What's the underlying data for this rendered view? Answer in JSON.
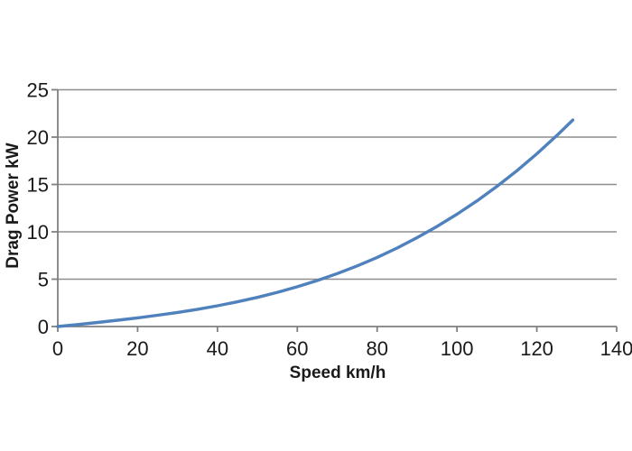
{
  "chart_data": {
    "type": "line",
    "title": "",
    "xlabel": "Speed km/h",
    "ylabel": "Drag Power kW",
    "xlim": [
      0,
      140
    ],
    "ylim": [
      0,
      25
    ],
    "xticks": [
      0,
      20,
      40,
      60,
      80,
      100,
      120,
      140
    ],
    "yticks": [
      0,
      5,
      10,
      15,
      20,
      25
    ],
    "grid": "horizontal-major",
    "legend": "none",
    "series": [
      {
        "x": [
          0,
          5,
          10,
          15,
          20,
          25,
          30,
          35,
          40,
          45,
          50,
          55,
          60,
          65,
          70,
          75,
          80,
          85,
          90,
          95,
          100,
          105,
          110,
          115,
          120,
          125,
          129
        ],
        "y": [
          0,
          0.21,
          0.43,
          0.67,
          0.91,
          1.19,
          1.49,
          1.82,
          2.19,
          2.61,
          3.08,
          3.61,
          4.2,
          4.86,
          5.59,
          6.4,
          7.3,
          8.29,
          9.38,
          10.56,
          11.86,
          13.27,
          14.8,
          16.45,
          18.24,
          20.16,
          21.8
        ]
      }
    ],
    "colors": {
      "line": "#4F81BD",
      "gridline": "#8e8e8e",
      "axis": "#7f7f7f",
      "text": "#1a1a1a",
      "background": "#ffffff"
    }
  }
}
